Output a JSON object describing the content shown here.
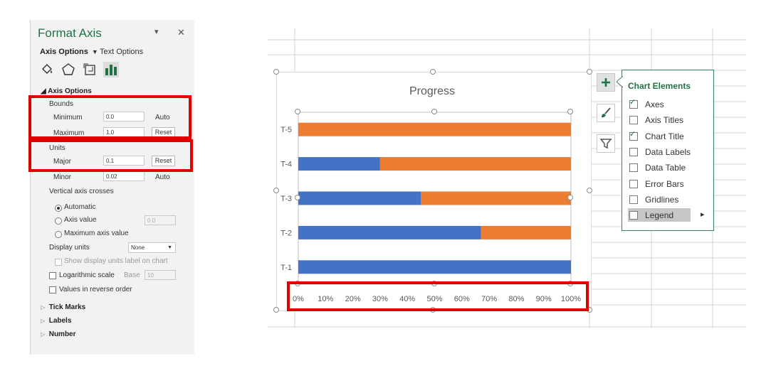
{
  "pane": {
    "title": "Format Axis",
    "dropdown_icon": "▾",
    "close_icon": "✕",
    "tabs": {
      "axis_options": "Axis Options",
      "text_options": "Text Options"
    },
    "icons": [
      "fill-line-icon",
      "effects-icon",
      "size-properties-icon",
      "axis-options-icon"
    ],
    "axis_options_header": "Axis Options",
    "bounds": {
      "label": "Bounds",
      "minimum_label": "Minimum",
      "minimum_value": "0.0",
      "minimum_state": "Auto",
      "maximum_label": "Maximum",
      "maximum_value": "1.0",
      "maximum_button": "Reset"
    },
    "units": {
      "label": "Units",
      "major_label": "Major",
      "major_value": "0.1",
      "major_button": "Reset",
      "minor_label": "Minor",
      "minor_value": "0.02",
      "minor_state": "Auto"
    },
    "vertical_axis_crosses": {
      "label": "Vertical axis crosses",
      "automatic": "Automatic",
      "axis_value": "Axis value",
      "axis_value_input": "0.0",
      "maximum_axis_value": "Maximum axis value"
    },
    "display_units": {
      "label": "Display units",
      "value": "None",
      "show_label": "Show display units label on chart"
    },
    "log_scale": {
      "label": "Logarithmic scale",
      "base_label": "Base",
      "base_value": "10"
    },
    "reverse": "Values in reverse order",
    "sections": [
      "Tick Marks",
      "Labels",
      "Number"
    ]
  },
  "chart_data": {
    "type": "bar",
    "orientation": "horizontal",
    "stacked": true,
    "title": "Progress",
    "categories": [
      "T-1",
      "T-2",
      "T-3",
      "T-4",
      "T-5"
    ],
    "series": [
      {
        "values": [
          1.0,
          0.67,
          0.45,
          0.3,
          0.0
        ],
        "color": "#4472c4"
      },
      {
        "values": [
          0.0,
          0.33,
          0.55,
          0.7,
          1.0
        ],
        "color": "#ed7d31"
      }
    ],
    "xlim": [
      0,
      1
    ],
    "xticks": [
      "0%",
      "10%",
      "20%",
      "30%",
      "40%",
      "50%",
      "60%",
      "70%",
      "80%",
      "90%",
      "100%"
    ],
    "legend": "none",
    "gridlines": false
  },
  "chart_elements": {
    "title": "Chart Elements",
    "items": [
      {
        "label": "Axes",
        "checked": true
      },
      {
        "label": "Axis Titles",
        "checked": false
      },
      {
        "label": "Chart Title",
        "checked": true
      },
      {
        "label": "Data Labels",
        "checked": false
      },
      {
        "label": "Data Table",
        "checked": false
      },
      {
        "label": "Error Bars",
        "checked": false
      },
      {
        "label": "Gridlines",
        "checked": false
      },
      {
        "label": "Legend",
        "checked": false
      }
    ],
    "legend_arrow": "▸",
    "tools": [
      "chart-elements-plus-icon",
      "chart-styles-brush-icon",
      "chart-filters-funnel-icon"
    ]
  },
  "colors": {
    "accent": "#217346",
    "highlight": "#e00000"
  }
}
